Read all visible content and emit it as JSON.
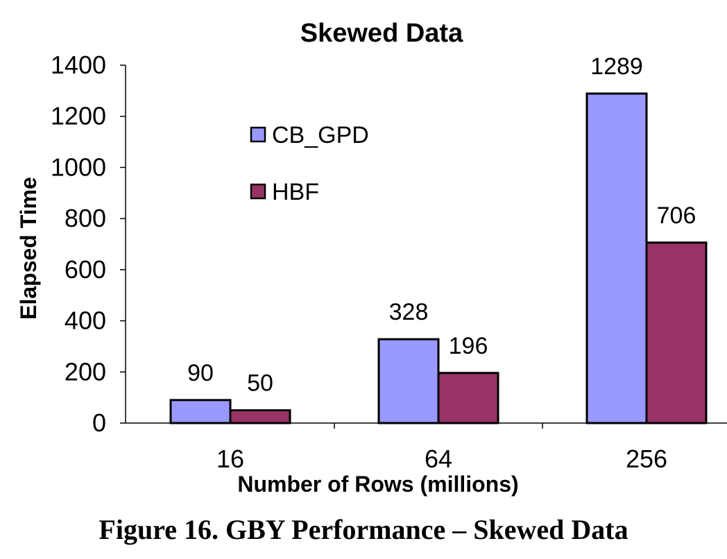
{
  "caption": "Figure 16. GBY Performance – Skewed Data",
  "chart_data": {
    "type": "bar",
    "title": "Skewed Data",
    "xlabel": "Number of Rows (millions)",
    "ylabel": "Elapsed Time",
    "categories": [
      "16",
      "64",
      "256"
    ],
    "series": [
      {
        "name": "CB_GPD",
        "values": [
          90,
          328,
          1289
        ],
        "color": "#9999ff"
      },
      {
        "name": "HBF",
        "values": [
          50,
          196,
          706
        ],
        "color": "#993366"
      }
    ],
    "ylim": [
      0,
      1400
    ],
    "yticks": [
      0,
      200,
      400,
      600,
      800,
      1000,
      1200,
      1400
    ],
    "grid": false,
    "legend_position": "inside-left",
    "data_labels": true
  }
}
